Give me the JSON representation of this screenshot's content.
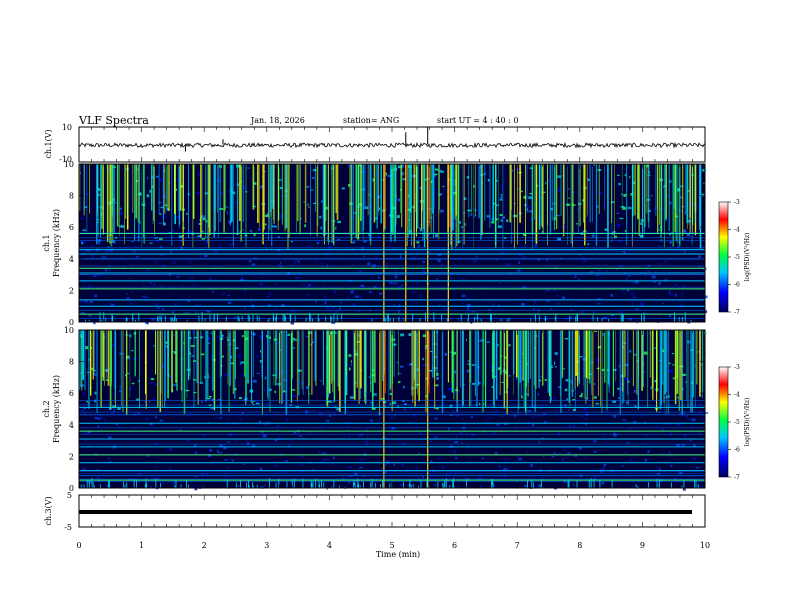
{
  "header": {
    "title": "VLF Spectra",
    "date": "Jan. 18, 2026",
    "station": "station= ANG",
    "start_ut": "start UT =  4 : 40 : 0"
  },
  "chart_data": [
    {
      "type": "line",
      "name": "ch1-waveform",
      "ylabel": "ch.1(V)",
      "ylim": [
        -10,
        10
      ],
      "yticks": [
        "10",
        "-10"
      ],
      "baseline_value": 0,
      "amplitude_typical": 2,
      "spikes": [
        {
          "x": 5.22,
          "y": 7
        },
        {
          "x": 5.57,
          "y": 10
        },
        {
          "x": 2.3,
          "y": 3
        },
        {
          "x": 1.7,
          "y": -4
        }
      ]
    },
    {
      "type": "heatmap",
      "name": "ch1-spectrogram",
      "ylabel": "ch.1\nFrequency (kHz)",
      "ylabel_line1": "ch.1",
      "ylabel_line2": "Frequency (kHz)",
      "ylim": [
        0,
        10
      ],
      "yticks": [
        "0",
        "2",
        "4",
        "6",
        "8",
        "10"
      ],
      "colorbar": {
        "label": "log(PSD)(V²/Hz)",
        "range": [
          -7,
          -3
        ],
        "ticks": [
          "-3",
          "-4",
          "-5",
          "-6",
          "-7"
        ]
      },
      "strong_lines_khz": [
        0.5,
        1.0,
        1.4,
        2.1,
        2.6,
        3.1,
        3.4,
        4.3,
        4.6,
        5.6
      ],
      "bright_events_min": [
        4.87,
        5.22,
        5.57,
        5.9
      ]
    },
    {
      "type": "heatmap",
      "name": "ch2-spectrogram",
      "ylabel_line1": "ch.2",
      "ylabel_line2": "Frequency (kHz)",
      "ylim": [
        0,
        10
      ],
      "yticks": [
        "0",
        "2",
        "4",
        "6",
        "8",
        "10"
      ],
      "colorbar": {
        "label": "log(PSD)(V²/Hz)",
        "range": [
          -7,
          -3
        ],
        "ticks": [
          "-3",
          "-4",
          "-5",
          "-6",
          "-7"
        ]
      },
      "strong_lines_khz": [
        0.5,
        1.1,
        1.6,
        2.1,
        2.6,
        3.1,
        3.6,
        4.1,
        5.1
      ],
      "bright_events_min": [
        4.87,
        5.57
      ]
    },
    {
      "type": "line",
      "name": "ch3-waveform",
      "ylabel": "ch.3(V)",
      "ylim": [
        -5,
        5
      ],
      "yticks": [
        "5",
        "-5"
      ],
      "baseline_value": 0
    }
  ],
  "xaxis": {
    "label": "Time (min)",
    "xlim": [
      0,
      10
    ],
    "ticks": [
      "0",
      "1",
      "2",
      "3",
      "4",
      "5",
      "6",
      "7",
      "8",
      "9",
      "10"
    ]
  }
}
